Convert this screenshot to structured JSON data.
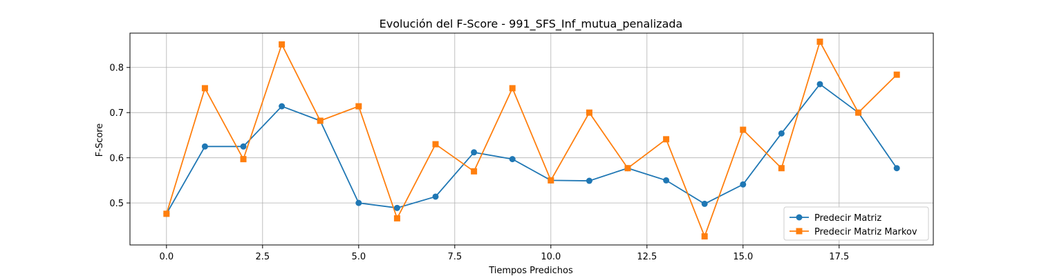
{
  "chart_data": {
    "type": "line",
    "title": "Evolución del F-Score - 991_SFS_Inf_mutua_penalizada",
    "xlabel": "Tiempos Predichos",
    "ylabel": "F-Score",
    "xlim": [
      -0.95,
      19.95
    ],
    "ylim": [
      0.407,
      0.876
    ],
    "xticks": [
      0.0,
      2.5,
      5.0,
      7.5,
      10.0,
      12.5,
      15.0,
      17.5
    ],
    "xtick_labels": [
      "0.0",
      "2.5",
      "5.0",
      "7.5",
      "10.0",
      "12.5",
      "15.0",
      "17.5"
    ],
    "yticks": [
      0.5,
      0.6,
      0.7,
      0.8
    ],
    "ytick_labels": [
      "0.5",
      "0.6",
      "0.7",
      "0.8"
    ],
    "grid": true,
    "legend_position": "bottom-right",
    "x": [
      0,
      1,
      2,
      3,
      4,
      5,
      6,
      7,
      8,
      9,
      10,
      11,
      12,
      13,
      14,
      15,
      16,
      17,
      18,
      19
    ],
    "series": [
      {
        "name": "Predecir Matriz",
        "color": "#1f77b4",
        "marker": "circle",
        "values": [
          0.476,
          0.625,
          0.625,
          0.714,
          0.682,
          0.5,
          0.489,
          0.514,
          0.612,
          0.597,
          0.55,
          0.549,
          0.577,
          0.55,
          0.498,
          0.541,
          0.654,
          0.763,
          0.7,
          0.577
        ]
      },
      {
        "name": "Predecir Matriz Markov",
        "color": "#ff7f0e",
        "marker": "square",
        "values": [
          0.476,
          0.754,
          0.597,
          0.851,
          0.682,
          0.714,
          0.466,
          0.63,
          0.57,
          0.754,
          0.55,
          0.7,
          0.577,
          0.641,
          0.426,
          0.662,
          0.577,
          0.857,
          0.7,
          0.784
        ]
      }
    ]
  }
}
